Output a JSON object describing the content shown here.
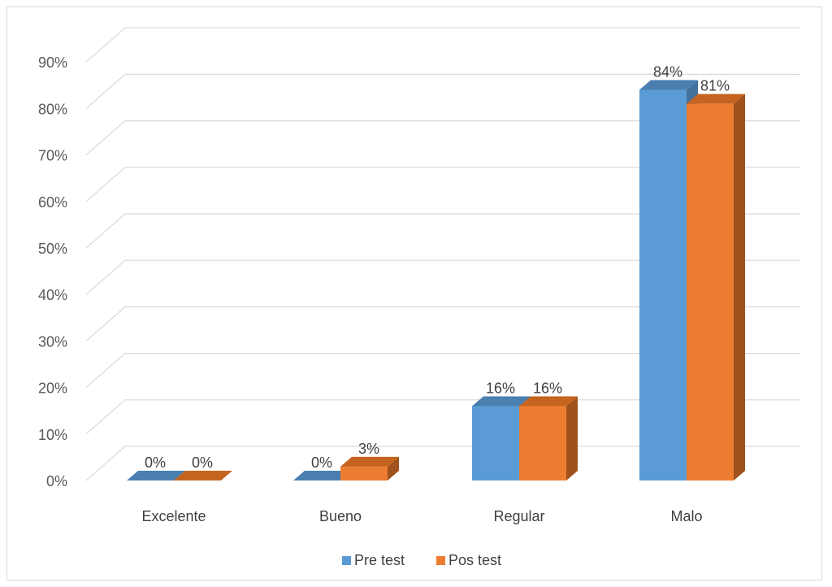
{
  "chart_data": {
    "type": "bar",
    "categories": [
      "Excelente",
      "Bueno",
      "Regular",
      "Malo"
    ],
    "series": [
      {
        "name": "Pre test",
        "values": [
          0,
          0,
          16,
          84
        ],
        "labels": [
          "0%",
          "0%",
          "16%",
          "84%"
        ]
      },
      {
        "name": "Pos test",
        "values": [
          0,
          3,
          16,
          81
        ],
        "labels": [
          "0%",
          "3%",
          "16%",
          "81%"
        ]
      }
    ],
    "y_ticks": [
      "0%",
      "10%",
      "20%",
      "30%",
      "40%",
      "50%",
      "60%",
      "70%",
      "80%",
      "90%"
    ],
    "ylim": [
      0,
      90
    ],
    "grid": true,
    "legend": "bottom",
    "style": "3d-clustered-column"
  },
  "colors": {
    "pre_front": "#5b9bd5",
    "pre_top": "#4a7fb0",
    "pre_side": "#41719c",
    "pos_front": "#ed7d31",
    "pos_top": "#c5641f",
    "pos_side": "#a0521c"
  }
}
